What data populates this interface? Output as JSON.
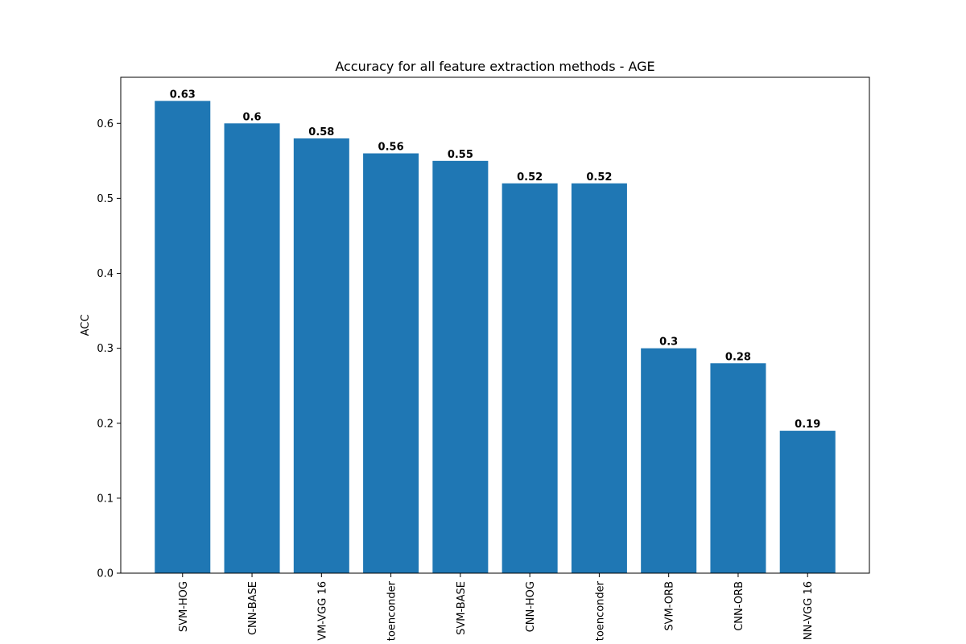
{
  "chart_data": {
    "type": "bar",
    "title": "Accuracy for all feature extraction methods - AGE",
    "y_label": "ACC",
    "categories": [
      "SVM-HOG",
      "CNN-BASE",
      "VM-VGG 16",
      "toenconder",
      "SVM-BASE",
      "CNN-HOG",
      "toenconder",
      "SVM-ORB",
      "CNN-ORB",
      "NN-VGG 16"
    ],
    "values": [
      0.63,
      0.6,
      0.58,
      0.56,
      0.55,
      0.52,
      0.52,
      0.3,
      0.28,
      0.19
    ],
    "color": "#1f77b4",
    "ylim": [
      0,
      0.6615
    ],
    "yticks": [
      {
        "value": 0,
        "label": "0.0"
      },
      0.1,
      0.2,
      0.3,
      0.4,
      0.5,
      0.6
    ],
    "grid": false
  }
}
